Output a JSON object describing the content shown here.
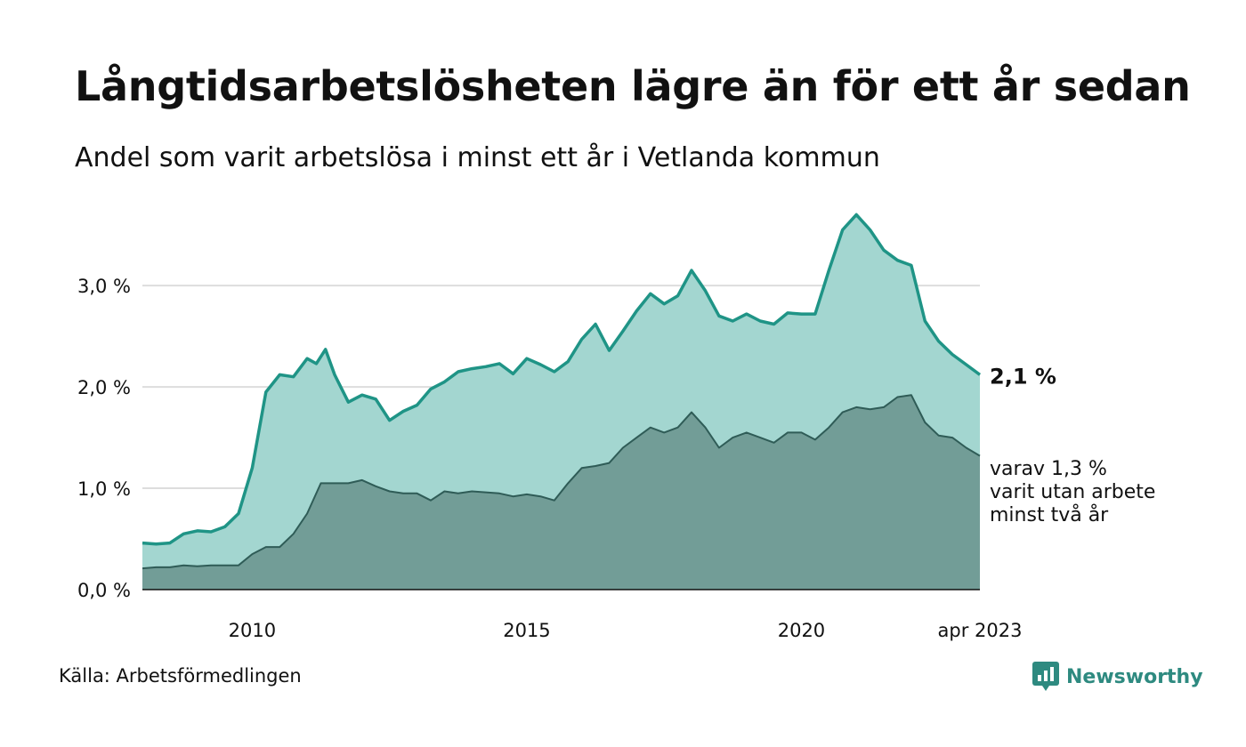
{
  "header": {
    "title": "Långtidsarbetslösheten lägre än för ett år sedan",
    "subtitle": "Andel som varit arbetslösa i minst ett år i Vetlanda kommun"
  },
  "footer": {
    "source": "Källa: Arbetsförmedlingen",
    "brand": "Newsworthy"
  },
  "colors": {
    "line_main": "#1f9486",
    "area_main": "#a3d6d0",
    "line_sub": "#2f5c57",
    "area_sub": "#729d97",
    "grid": "#dddddd",
    "brand": "#2e8a80"
  },
  "chart_data": {
    "type": "area",
    "title": "Långtidsarbetslösheten lägre än för ett år sedan",
    "subtitle": "Andel som varit arbetslösa i minst ett år i Vetlanda kommun",
    "x_start": "2008-01",
    "x_end": "2023-04",
    "x_ticks": [
      {
        "date": "2010-01",
        "label": "2010"
      },
      {
        "date": "2015-01",
        "label": "2015"
      },
      {
        "date": "2020-01",
        "label": "2020"
      },
      {
        "date": "2023-04",
        "label": "apr 2023"
      }
    ],
    "ylim": [
      0,
      3.8
    ],
    "y_ticks": [
      {
        "value": 0,
        "label": "0,0 %"
      },
      {
        "value": 1,
        "label": "1,0 %"
      },
      {
        "value": 2,
        "label": "2,0 %"
      },
      {
        "value": 3,
        "label": "3,0 %"
      }
    ],
    "grid": true,
    "series": [
      {
        "key": "main",
        "points": [
          [
            "2008-01",
            0.46
          ],
          [
            "2008-04",
            0.45
          ],
          [
            "2008-07",
            0.46
          ],
          [
            "2008-10",
            0.55
          ],
          [
            "2009-01",
            0.58
          ],
          [
            "2009-04",
            0.57
          ],
          [
            "2009-07",
            0.62
          ],
          [
            "2009-10",
            0.75
          ],
          [
            "2010-01",
            1.2
          ],
          [
            "2010-04",
            1.95
          ],
          [
            "2010-07",
            2.12
          ],
          [
            "2010-10",
            2.1
          ],
          [
            "2011-01",
            2.28
          ],
          [
            "2011-03",
            2.23
          ],
          [
            "2011-05",
            2.37
          ],
          [
            "2011-07",
            2.12
          ],
          [
            "2011-10",
            1.85
          ],
          [
            "2012-01",
            1.92
          ],
          [
            "2012-04",
            1.88
          ],
          [
            "2012-07",
            1.67
          ],
          [
            "2012-10",
            1.76
          ],
          [
            "2013-01",
            1.82
          ],
          [
            "2013-04",
            1.98
          ],
          [
            "2013-07",
            2.05
          ],
          [
            "2013-10",
            2.15
          ],
          [
            "2014-01",
            2.18
          ],
          [
            "2014-04",
            2.2
          ],
          [
            "2014-07",
            2.23
          ],
          [
            "2014-10",
            2.13
          ],
          [
            "2015-01",
            2.28
          ],
          [
            "2015-04",
            2.22
          ],
          [
            "2015-07",
            2.15
          ],
          [
            "2015-10",
            2.25
          ],
          [
            "2016-01",
            2.47
          ],
          [
            "2016-04",
            2.62
          ],
          [
            "2016-07",
            2.36
          ],
          [
            "2016-10",
            2.55
          ],
          [
            "2017-01",
            2.75
          ],
          [
            "2017-04",
            2.92
          ],
          [
            "2017-07",
            2.82
          ],
          [
            "2017-10",
            2.9
          ],
          [
            "2018-01",
            3.15
          ],
          [
            "2018-04",
            2.95
          ],
          [
            "2018-07",
            2.7
          ],
          [
            "2018-10",
            2.65
          ],
          [
            "2019-01",
            2.72
          ],
          [
            "2019-04",
            2.65
          ],
          [
            "2019-07",
            2.62
          ],
          [
            "2019-10",
            2.73
          ],
          [
            "2020-01",
            2.72
          ],
          [
            "2020-04",
            2.72
          ],
          [
            "2020-07",
            3.15
          ],
          [
            "2020-10",
            3.55
          ],
          [
            "2021-01",
            3.7
          ],
          [
            "2021-04",
            3.55
          ],
          [
            "2021-07",
            3.35
          ],
          [
            "2021-10",
            3.25
          ],
          [
            "2022-01",
            3.2
          ],
          [
            "2022-04",
            2.65
          ],
          [
            "2022-07",
            2.45
          ],
          [
            "2022-10",
            2.32
          ],
          [
            "2023-01",
            2.22
          ],
          [
            "2023-04",
            2.12
          ]
        ],
        "end_label": "2,1 %"
      },
      {
        "key": "sub",
        "points": [
          [
            "2008-01",
            0.21
          ],
          [
            "2008-04",
            0.22
          ],
          [
            "2008-07",
            0.22
          ],
          [
            "2008-10",
            0.24
          ],
          [
            "2009-01",
            0.23
          ],
          [
            "2009-04",
            0.24
          ],
          [
            "2009-07",
            0.24
          ],
          [
            "2009-10",
            0.24
          ],
          [
            "2010-01",
            0.35
          ],
          [
            "2010-04",
            0.42
          ],
          [
            "2010-07",
            0.42
          ],
          [
            "2010-10",
            0.55
          ],
          [
            "2011-01",
            0.75
          ],
          [
            "2011-04",
            1.05
          ],
          [
            "2011-07",
            1.05
          ],
          [
            "2011-10",
            1.05
          ],
          [
            "2012-01",
            1.08
          ],
          [
            "2012-04",
            1.02
          ],
          [
            "2012-07",
            0.97
          ],
          [
            "2012-10",
            0.95
          ],
          [
            "2013-01",
            0.95
          ],
          [
            "2013-04",
            0.88
          ],
          [
            "2013-07",
            0.97
          ],
          [
            "2013-10",
            0.95
          ],
          [
            "2014-01",
            0.97
          ],
          [
            "2014-04",
            0.96
          ],
          [
            "2014-07",
            0.95
          ],
          [
            "2014-10",
            0.92
          ],
          [
            "2015-01",
            0.94
          ],
          [
            "2015-04",
            0.92
          ],
          [
            "2015-07",
            0.88
          ],
          [
            "2015-10",
            1.05
          ],
          [
            "2016-01",
            1.2
          ],
          [
            "2016-04",
            1.22
          ],
          [
            "2016-07",
            1.25
          ],
          [
            "2016-10",
            1.4
          ],
          [
            "2017-01",
            1.5
          ],
          [
            "2017-04",
            1.6
          ],
          [
            "2017-07",
            1.55
          ],
          [
            "2017-10",
            1.6
          ],
          [
            "2018-01",
            1.75
          ],
          [
            "2018-04",
            1.6
          ],
          [
            "2018-07",
            1.4
          ],
          [
            "2018-10",
            1.5
          ],
          [
            "2019-01",
            1.55
          ],
          [
            "2019-04",
            1.5
          ],
          [
            "2019-07",
            1.45
          ],
          [
            "2019-10",
            1.55
          ],
          [
            "2020-01",
            1.55
          ],
          [
            "2020-04",
            1.48
          ],
          [
            "2020-07",
            1.6
          ],
          [
            "2020-10",
            1.75
          ],
          [
            "2021-01",
            1.8
          ],
          [
            "2021-04",
            1.78
          ],
          [
            "2021-07",
            1.8
          ],
          [
            "2021-10",
            1.9
          ],
          [
            "2022-01",
            1.92
          ],
          [
            "2022-04",
            1.65
          ],
          [
            "2022-07",
            1.52
          ],
          [
            "2022-10",
            1.5
          ],
          [
            "2023-01",
            1.4
          ],
          [
            "2023-04",
            1.32
          ]
        ],
        "end_label": [
          "varav 1,3 %",
          "varit utan arbete",
          "minst två år"
        ]
      }
    ]
  }
}
